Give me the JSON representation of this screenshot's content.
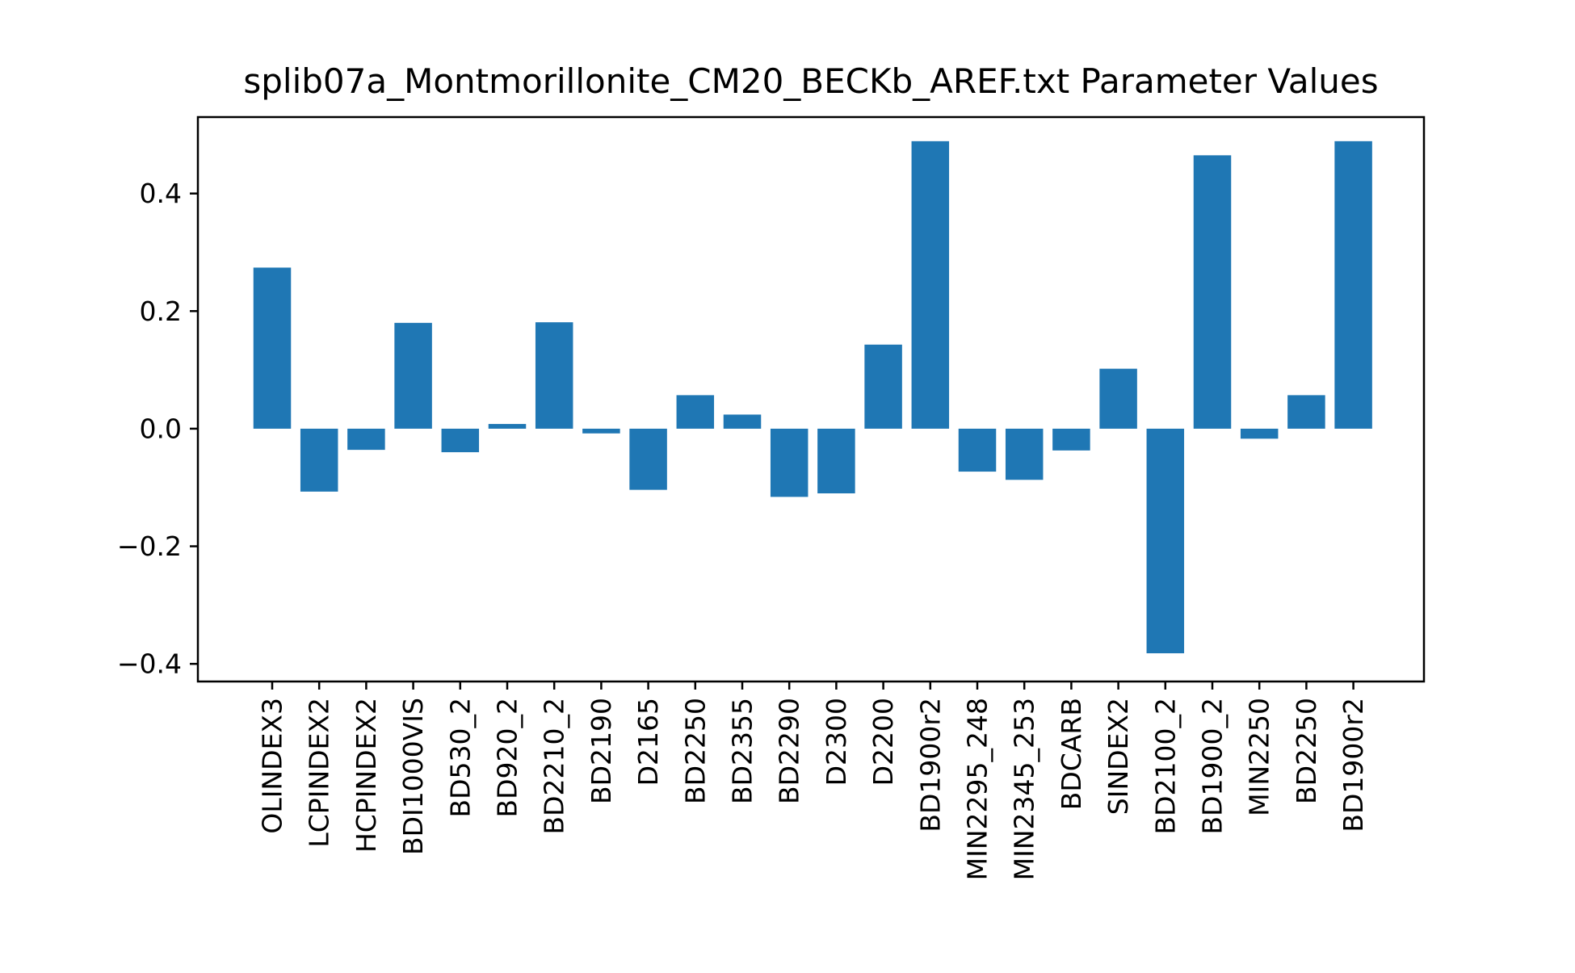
{
  "chart_data": {
    "type": "bar",
    "title": "splib07a_Montmorillonite_CM20_BECKb_AREF.txt Parameter Values",
    "xlabel": "",
    "ylabel": "",
    "categories": [
      "OLINDEX3",
      "LCPINDEX2",
      "HCPINDEX2",
      "BDI1000VIS",
      "BD530_2",
      "BD920_2",
      "BD2210_2",
      "BD2190",
      "D2165",
      "BD2250",
      "BD2355",
      "BD2290",
      "D2300",
      "D2200",
      "BD1900r2",
      "MIN2295_248",
      "MIN2345_253",
      "BDCARB",
      "SINDEX2",
      "BD2100_2",
      "BD1900_2",
      "MIN2250",
      "BD2250",
      "BD1900r2"
    ],
    "values": [
      0.274,
      -0.107,
      -0.036,
      0.18,
      -0.04,
      0.008,
      0.181,
      -0.008,
      -0.104,
      0.057,
      0.024,
      -0.116,
      -0.11,
      0.143,
      0.489,
      -0.073,
      -0.087,
      -0.037,
      0.102,
      -0.382,
      0.465,
      -0.017,
      0.057,
      0.489
    ],
    "ylim": [
      -0.43,
      0.53
    ],
    "yticks": [
      -0.4,
      -0.2,
      0.0,
      0.2,
      0.4
    ],
    "ytick_labels": [
      "−0.4",
      "−0.2",
      "0.0",
      "0.2",
      "0.4"
    ],
    "grid": false,
    "legend": "none",
    "bar_color": "#1f77b4"
  }
}
